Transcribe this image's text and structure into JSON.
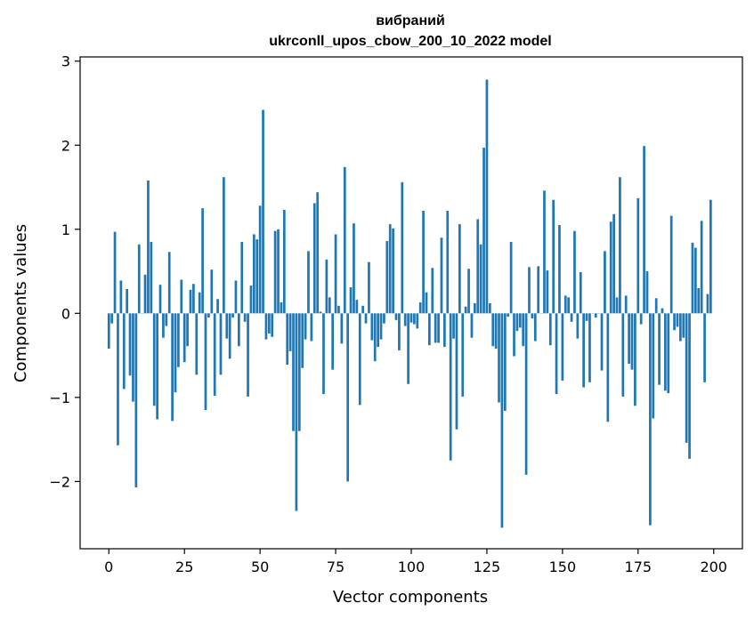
{
  "chart_data": {
    "type": "bar",
    "title_line1": "вибраний",
    "title_line2": "ukrconll_upos_cbow_200_10_2022 model",
    "xlabel": "Vector components",
    "ylabel": "Components values",
    "xlim": [
      -9.5,
      209.5
    ],
    "ylim": [
      -2.8,
      3.05
    ],
    "xticks": [
      0,
      25,
      50,
      75,
      100,
      125,
      150,
      175,
      200
    ],
    "yticks": [
      -2,
      -1,
      0,
      1,
      2,
      3
    ],
    "ytick_labels": [
      "−2",
      "−1",
      "0",
      "1",
      "2",
      "3"
    ],
    "bar_color": "#1f77b4",
    "grid": false,
    "legend": "none",
    "series": [
      {
        "x_start": 0,
        "values": [
          -0.42,
          -0.12,
          0.97,
          -1.57,
          0.39,
          -0.9,
          0.29,
          -0.74,
          -1.05,
          -2.07,
          0.82,
          0.0,
          0.46,
          1.58,
          0.85,
          -1.1,
          -1.26,
          0.34,
          -0.29,
          -0.15,
          0.73,
          -1.28,
          -0.94,
          -0.64,
          0.4,
          -0.58,
          -0.39,
          0.28,
          0.35,
          -0.73,
          0.25,
          1.25,
          -1.15,
          -0.05,
          0.52,
          -0.98,
          0.17,
          -0.73,
          1.62,
          -0.3,
          -0.54,
          -0.05,
          0.39,
          -0.39,
          0.85,
          -0.1,
          -0.99,
          0.33,
          0.94,
          0.88,
          1.28,
          2.42,
          -0.31,
          -0.24,
          -0.28,
          0.98,
          1.0,
          0.13,
          1.23,
          -0.61,
          -0.45,
          -1.4,
          -2.35,
          -1.4,
          -0.65,
          -0.31,
          0.74,
          -0.33,
          1.31,
          1.44,
          0.02,
          -0.96,
          0.64,
          0.19,
          -0.67,
          0.94,
          0.09,
          -0.36,
          1.74,
          -2.0,
          0.31,
          1.07,
          0.16,
          -1.09,
          0.09,
          -0.12,
          0.61,
          -0.32,
          -0.57,
          -0.4,
          -0.31,
          -0.12,
          0.86,
          1.06,
          1.01,
          -0.08,
          -0.44,
          1.56,
          -0.15,
          -0.84,
          -0.11,
          -0.13,
          -0.18,
          0.13,
          1.22,
          0.25,
          -0.38,
          0.54,
          -0.35,
          -0.35,
          0.9,
          -0.4,
          1.22,
          -1.75,
          -0.3,
          -1.38,
          1.06,
          -0.99,
          0.08,
          0.53,
          -0.29,
          0.12,
          1.12,
          0.82,
          1.97,
          2.78,
          0.12,
          -0.39,
          -0.42,
          -1.06,
          -2.55,
          -1.16,
          -0.04,
          0.85,
          -0.51,
          -0.21,
          -0.17,
          -0.39,
          -1.92,
          0.55,
          -0.06,
          -0.33,
          0.56,
          0.0,
          1.46,
          0.51,
          -0.38,
          1.35,
          -0.96,
          1.05,
          -0.8,
          0.21,
          0.19,
          -0.1,
          0.98,
          -0.3,
          0.49,
          -0.88,
          -0.09,
          -0.82,
          0.0,
          -0.05,
          0.0,
          -0.68,
          0.74,
          -1.29,
          1.09,
          1.18,
          0.19,
          1.62,
          -0.99,
          0.21,
          -0.6,
          -0.67,
          -1.1,
          1.37,
          -0.13,
          1.99,
          0.5,
          -2.52,
          -1.25,
          0.18,
          -0.85,
          0.06,
          -0.92,
          -0.95,
          1.16,
          -0.2,
          -0.16,
          -0.33,
          -0.29,
          -1.54,
          -1.73,
          0.84,
          0.78,
          0.3,
          1.1,
          -0.82,
          0.23,
          1.35
        ]
      }
    ]
  }
}
